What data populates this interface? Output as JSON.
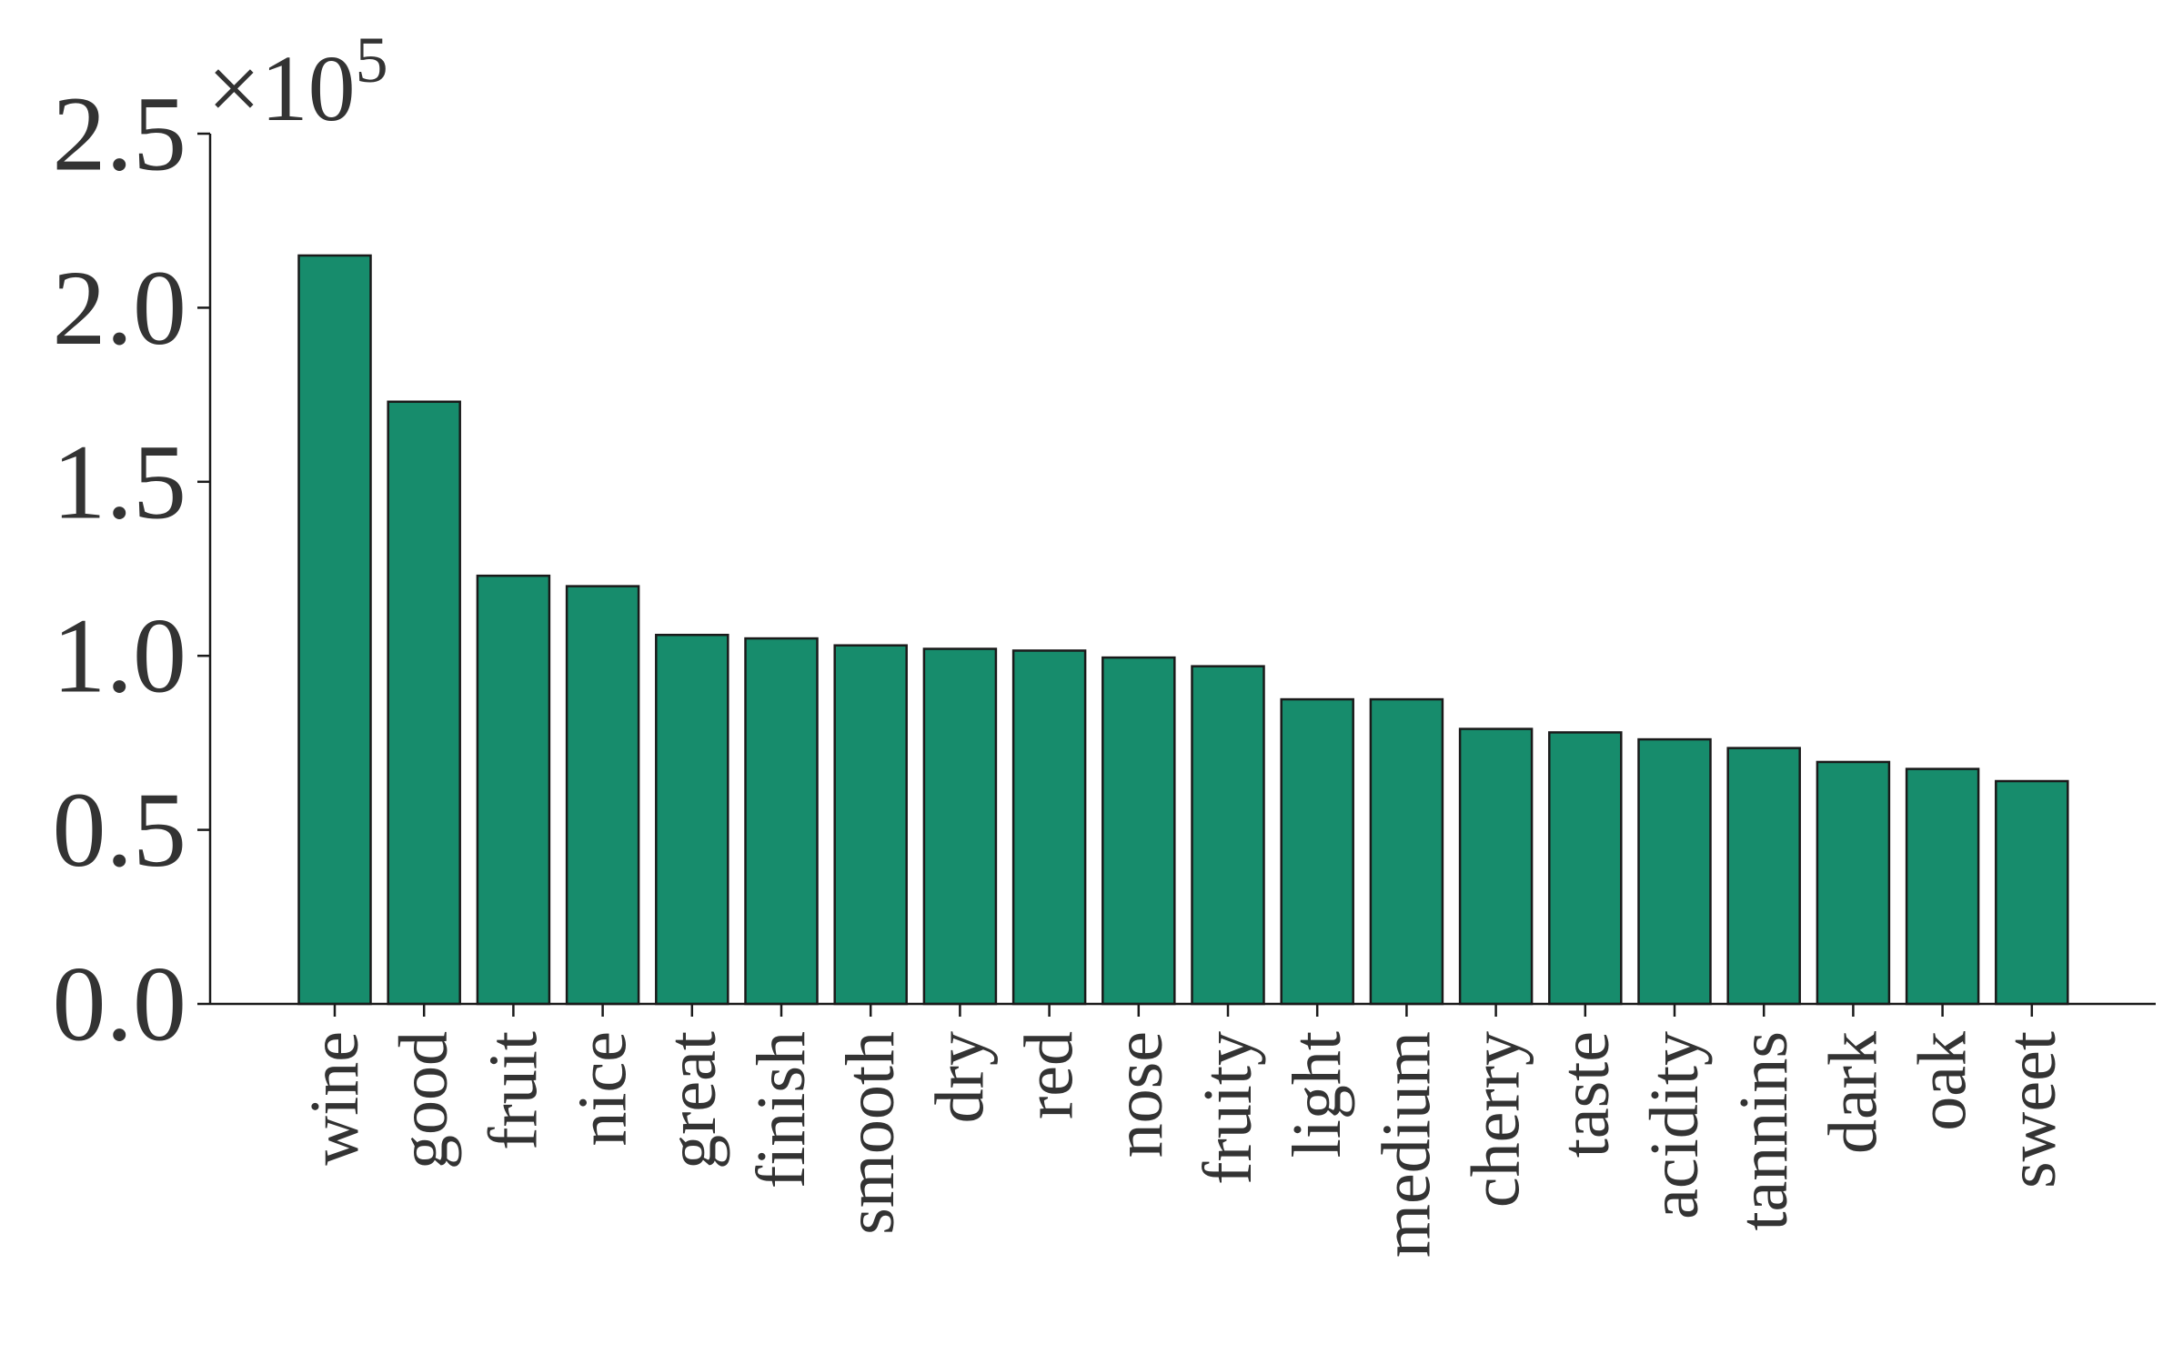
{
  "chart_data": {
    "type": "bar",
    "categories": [
      "wine",
      "good",
      "fruit",
      "nice",
      "great",
      "finish",
      "smooth",
      "dry",
      "red",
      "nose",
      "fruity",
      "light",
      "medium",
      "cherry",
      "taste",
      "acidity",
      "tannins",
      "dark",
      "oak",
      "sweet"
    ],
    "values": [
      215000,
      173000,
      123000,
      120000,
      106000,
      105000,
      103000,
      102000,
      101500,
      99500,
      97000,
      87500,
      87500,
      79000,
      78000,
      76000,
      73500,
      69500,
      67500,
      64000
    ],
    "title": "",
    "xlabel": "",
    "ylabel": "",
    "ylim": [
      0,
      250000
    ],
    "yticks": [
      0,
      50000,
      100000,
      150000,
      200000,
      250000
    ],
    "ytick_labels": [
      "0.0",
      "0.5",
      "1.0",
      "1.5",
      "2.0",
      "2.5"
    ],
    "y_multiplier": {
      "base": "×10",
      "exponent": "5"
    },
    "grid": false,
    "legend": false,
    "bar_color": "#178C6C",
    "edge_color": "#1a1a1a",
    "text_color": "#333333"
  }
}
